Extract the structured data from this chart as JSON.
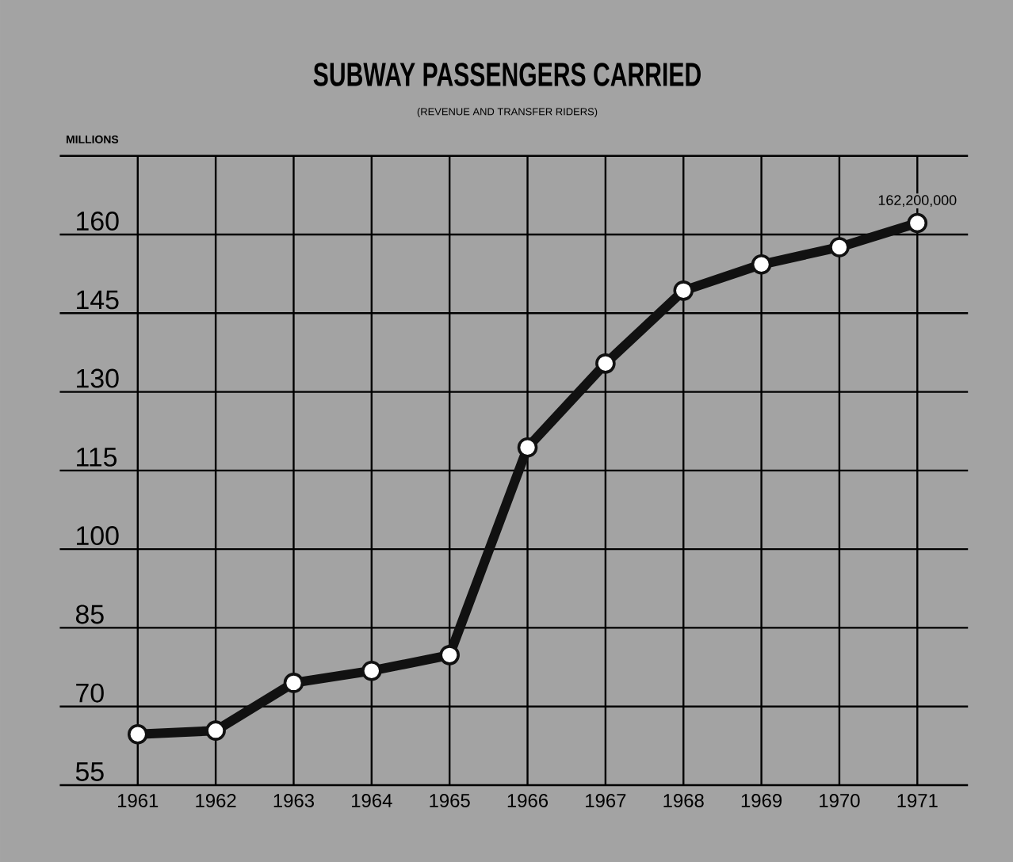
{
  "chart_data": {
    "type": "line",
    "title": "SUBWAY PASSENGERS CARRIED",
    "subtitle": "(REVENUE AND TRANSFER RIDERS)",
    "ylabel": "MILLIONS",
    "x": [
      1961,
      1962,
      1963,
      1964,
      1965,
      1966,
      1967,
      1968,
      1969,
      1970,
      1971
    ],
    "series": [
      {
        "color": "#111111",
        "values": [
          64.7,
          65.4,
          74.5,
          76.8,
          79.8,
          119.4,
          135.4,
          149.3,
          154.3,
          157.6,
          162.2
        ]
      }
    ],
    "xlim": [
      1960,
      1971.65
    ],
    "xticks": [
      1961,
      1962,
      1963,
      1964,
      1965,
      1966,
      1967,
      1968,
      1969,
      1970,
      1971
    ],
    "ylim": [
      55,
      175
    ],
    "yticks": [
      55,
      70,
      85,
      100,
      115,
      130,
      145,
      160,
      {
        "value": 175,
        "label": null
      }
    ],
    "annotations": [
      {
        "text": "162,200,000",
        "x": 1971,
        "y": 162.2
      }
    ],
    "grid": true,
    "marker": "circle",
    "line_style": "solid"
  }
}
